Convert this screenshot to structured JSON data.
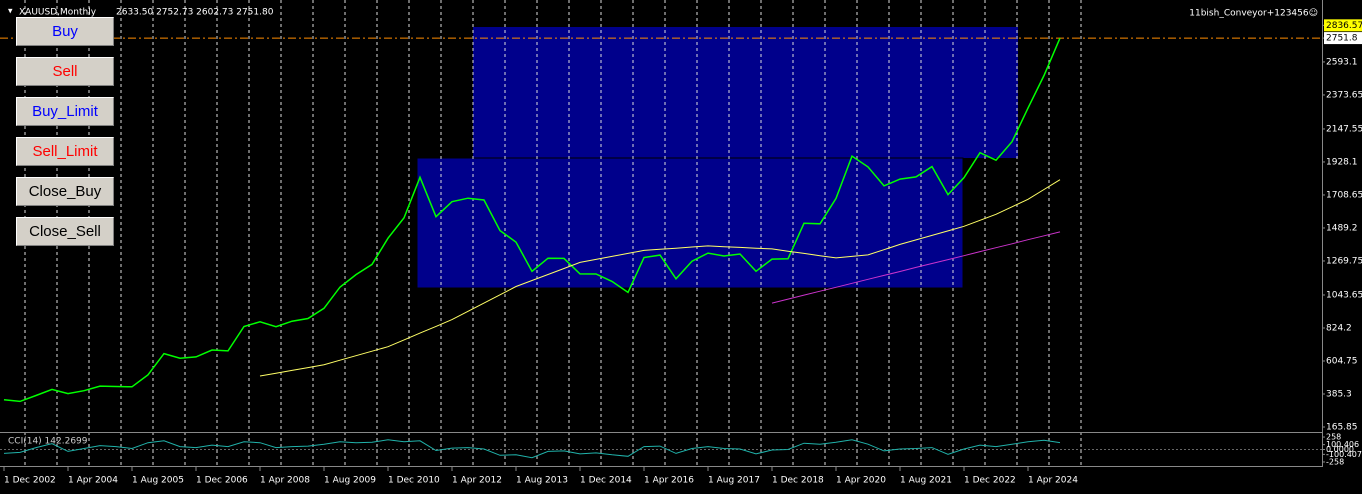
{
  "header": {
    "symbol": "XAUUSD,Monthly",
    "ohlc": "2633.50 2752.73 2602.73 2751.80",
    "account": "11bish_Conveyor+123456☺"
  },
  "buttons": [
    {
      "label": "Buy",
      "color": "#0000ff"
    },
    {
      "label": "Sell",
      "color": "#ff0000"
    },
    {
      "label": "Buy_Limit",
      "color": "#0000ff"
    },
    {
      "label": "Sell_Limit",
      "color": "#ff0000"
    },
    {
      "label": "Close_Buy",
      "color": "#000000"
    },
    {
      "label": "Close_Sell",
      "color": "#000000"
    }
  ],
  "chart_data": [
    {
      "type": "line",
      "categories": [
        "1 Dec 2002",
        null,
        null,
        null,
        "1 Apr 2004",
        null,
        null,
        null,
        "1 Aug 2005",
        null,
        null,
        null,
        "1 Dec 2006",
        null,
        null,
        null,
        "1 Apr 2008",
        null,
        null,
        null,
        "1 Aug 2009",
        null,
        null,
        null,
        "1 Dec 2010",
        null,
        null,
        null,
        "1 Apr 2012",
        null,
        null,
        null,
        "1 Aug 2013",
        null,
        null,
        null,
        "1 Dec 2014",
        null,
        null,
        null,
        "1 Apr 2016",
        null,
        null,
        null,
        "1 Aug 2017",
        null,
        null,
        null,
        "1 Dec 2018",
        null,
        null,
        null,
        "1 Apr 2020",
        null,
        null,
        null,
        "1 Aug 2021",
        null,
        null,
        null,
        "1 Dec 2022",
        null,
        null,
        null,
        "1 Apr 2024",
        null,
        null
      ],
      "series": [
        {
          "color": "#00ff00",
          "values": [
            347,
            336,
            375,
            416,
            388,
            407,
            438,
            435,
            433,
            513,
            654,
            623,
            632,
            678,
            672,
            834,
            865,
            833,
            869,
            887,
            955,
            1096,
            1179,
            1247,
            1421,
            1556,
            1826,
            1564,
            1664,
            1687,
            1675,
            1472,
            1395,
            1201,
            1288,
            1287,
            1184,
            1183,
            1134,
            1061,
            1293,
            1309,
            1151,
            1268,
            1322,
            1303,
            1316,
            1201,
            1282,
            1284,
            1520,
            1517,
            1686,
            1967,
            1895,
            1769,
            1814,
            1829,
            1897,
            1711,
            1824,
            1990,
            1940,
            2063,
            2286,
            2503,
            2751.8
          ]
        },
        {
          "color": "#ffff66",
          "values": [
            null,
            null,
            null,
            null,
            null,
            null,
            null,
            null,
            null,
            null,
            null,
            null,
            null,
            null,
            null,
            null,
            505,
            523,
            542,
            561,
            580,
            610,
            640,
            670,
            700,
            745,
            790,
            835,
            880,
            935,
            990,
            1045,
            1100,
            1140,
            1180,
            1220,
            1260,
            1280,
            1300,
            1320,
            1340,
            1348,
            1355,
            1363,
            1370,
            1365,
            1360,
            1355,
            1350,
            1335,
            1320,
            1305,
            1290,
            1300,
            1310,
            1345,
            1380,
            1410,
            1440,
            1470,
            1500,
            1540,
            1580,
            1630,
            1680,
            1745,
            1810
          ]
        },
        {
          "color": "#cc33cc",
          "values": [
            null,
            null,
            null,
            null,
            null,
            null,
            null,
            null,
            null,
            null,
            null,
            null,
            null,
            null,
            null,
            null,
            null,
            null,
            null,
            null,
            null,
            null,
            null,
            null,
            null,
            null,
            null,
            null,
            null,
            null,
            null,
            null,
            null,
            null,
            null,
            null,
            null,
            null,
            null,
            null,
            null,
            null,
            null,
            null,
            null,
            null,
            null,
            null,
            990,
            1016,
            1043,
            1069,
            1095,
            1121,
            1148,
            1174,
            1200,
            1227,
            1253,
            1279,
            1305,
            1332,
            1358,
            1384,
            1411,
            1437,
            1463
          ]
        }
      ],
      "ylim": [
        165.85,
        3005
      ],
      "yticks": [
        2836.57,
        2751.8,
        2593.1,
        2373.65,
        2147.55,
        1928.1,
        1708.65,
        1489.2,
        1269.75,
        1043.65,
        824.2,
        604.75,
        385.3,
        165.85
      ],
      "tick_highlight_colors": [
        "#ffff00",
        "#ffffff"
      ],
      "price_line_color": "#ff8c00",
      "grid": true
    },
    {
      "type": "line",
      "title": "CCI(14) 142.2699",
      "series": [
        {
          "color": "#20b2aa",
          "values": [
            -80,
            -60,
            40,
            120,
            -40,
            20,
            80,
            60,
            20,
            140,
            180,
            60,
            40,
            90,
            60,
            160,
            140,
            40,
            60,
            70,
            110,
            160,
            140,
            150,
            200,
            160,
            180,
            -20,
            30,
            40,
            10,
            -120,
            -110,
            -170,
            -40,
            -30,
            -90,
            -70,
            -110,
            -140,
            60,
            70,
            -80,
            20,
            60,
            20,
            10,
            -90,
            -10,
            0,
            130,
            110,
            150,
            200,
            110,
            -30,
            10,
            20,
            40,
            -100,
            10,
            90,
            60,
            110,
            160,
            190,
            142.2699
          ]
        }
      ],
      "ylim": [
        -300,
        300
      ],
      "yticks": [
        258,
        100.406,
        {
          "value": 0,
          "label": "0.0000"
        },
        -100.407,
        -258
      ]
    }
  ]
}
